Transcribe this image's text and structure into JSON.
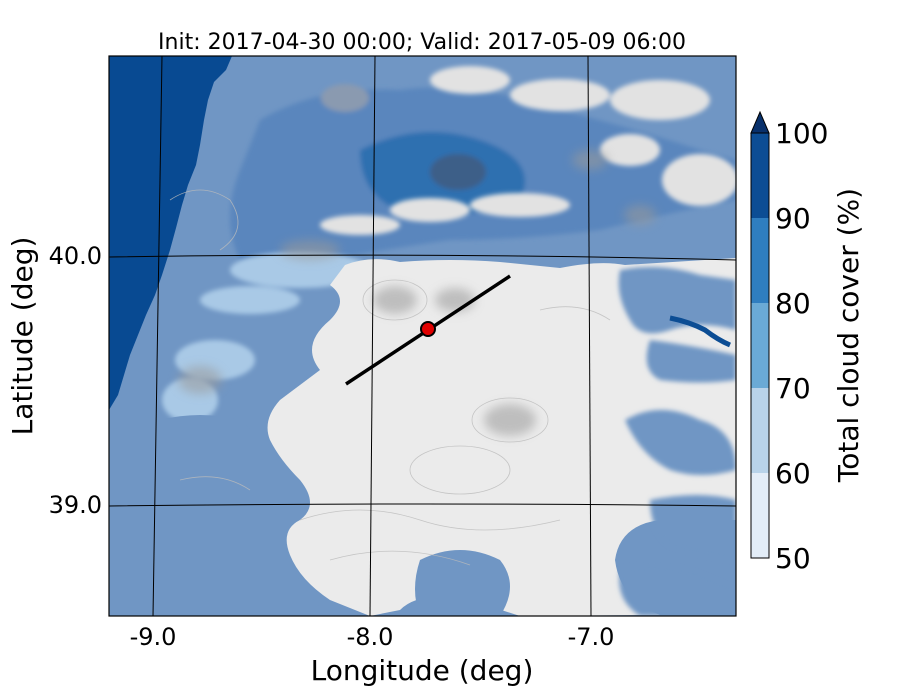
{
  "title": "Init: 2017-04-30 00:00; Valid: 2017-05-09 06:00",
  "axes": {
    "xlabel": "Longitude (deg)",
    "ylabel": "Latitude (deg)",
    "xticks": [
      -9.0,
      -8.0,
      -7.0
    ],
    "xtick_labels": [
      "-9.0",
      "-8.0",
      "-7.0"
    ],
    "yticks": [
      40.0,
      39.0
    ],
    "ytick_labels": [
      "40.0",
      "39.0"
    ],
    "xlim": [
      -9.25,
      -6.35
    ],
    "ylim": [
      38.55,
      40.8
    ]
  },
  "colorbar": {
    "label": "Total cloud cover (%)",
    "tick_labels": [
      "50",
      "60",
      "70",
      "80",
      "90",
      "100"
    ],
    "levels": [
      50,
      60,
      70,
      80,
      90,
      100
    ],
    "colors": [
      "#e3edf8",
      "#b8d3ea",
      "#6aaad6",
      "#2f7ec0",
      "#0c4d94"
    ],
    "extend": "max",
    "extend_color": "#08306b"
  },
  "map_colors": {
    "ocean": "#084a92",
    "land_cloud": "#7096c4",
    "clear_sky": "#ebebeb",
    "mountain_shade": "#9a9a9a",
    "graticule": "#000000"
  },
  "chart_data": {
    "type": "heatmap",
    "title": "Init: 2017-04-30 00:00; Valid: 2017-05-09 06:00",
    "xlabel": "Longitude (deg)",
    "ylabel": "Latitude (deg)",
    "xlim": [
      -9.25,
      -6.35
    ],
    "ylim": [
      38.55,
      40.8
    ],
    "variable": "Total cloud cover (%)",
    "transect": {
      "start": [
        -8.12,
        39.49
      ],
      "end": [
        -7.37,
        39.93
      ]
    },
    "marker": {
      "lon": -7.75,
      "lat": 39.7,
      "color": "#e00000"
    }
  }
}
